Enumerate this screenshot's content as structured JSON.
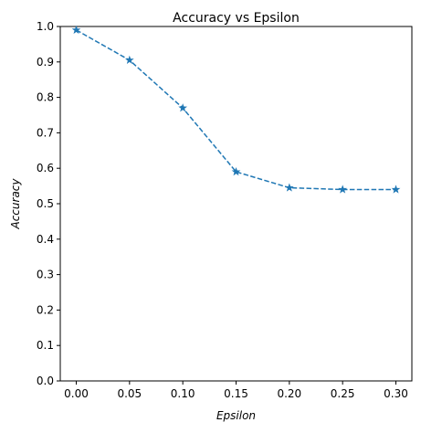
{
  "chart_data": {
    "type": "line",
    "title": "Accuracy vs Epsilon",
    "xlabel": "Epsilon",
    "ylabel": "Accuracy",
    "xlim": [
      -0.015,
      0.315
    ],
    "ylim": [
      0.0,
      1.0
    ],
    "x_ticks": [
      "0.00",
      "0.05",
      "0.10",
      "0.15",
      "0.20",
      "0.25",
      "0.30"
    ],
    "y_ticks": [
      "0.0",
      "0.1",
      "0.2",
      "0.3",
      "0.4",
      "0.5",
      "0.6",
      "0.7",
      "0.8",
      "0.9",
      "1.0"
    ],
    "grid": false,
    "series": [
      {
        "x": [
          0.0,
          0.05,
          0.1,
          0.15,
          0.2,
          0.25,
          0.3
        ],
        "y": [
          0.99,
          0.905,
          0.77,
          0.59,
          0.545,
          0.54,
          0.54
        ],
        "color": "#1f77b4",
        "line_style": "dashed",
        "marker": "star"
      }
    ]
  }
}
